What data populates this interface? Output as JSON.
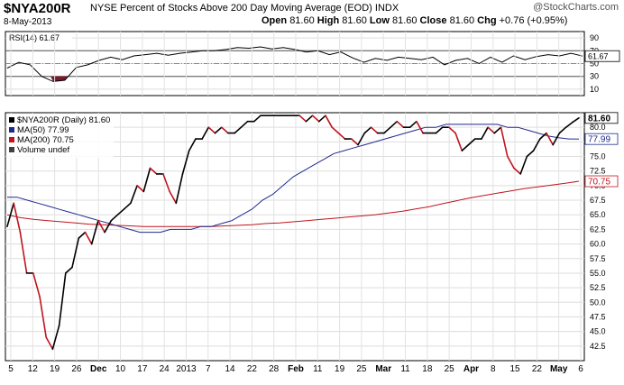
{
  "header": {
    "symbol": "$NYA200R",
    "description": "NYSE Percent of Stocks Above 200 Day Moving Average (EOD)  INDX",
    "date": "8-May-2013",
    "open_label": "Open",
    "open": "81.60",
    "high_label": "High",
    "high": "81.60",
    "low_label": "Low",
    "low": "81.60",
    "close_label": "Close",
    "close": "81.60",
    "chg_label": "Chg",
    "chg": "+0.76 (+0.95%)",
    "watermark": "@StockCharts.com"
  },
  "chart_data": [
    {
      "type": "line",
      "panel": "RSI",
      "title": "RSI(14) 61.67",
      "ylim": [
        0,
        100
      ],
      "yticks": [
        10,
        30,
        50,
        70,
        90
      ],
      "reference_lines": [
        30,
        50,
        70
      ],
      "last_value_label": "61.67",
      "series": [
        {
          "name": "RSI(14)",
          "color": "#000000",
          "values": [
            43,
            52,
            48,
            30,
            22,
            24,
            44,
            48,
            55,
            60,
            56,
            62,
            64,
            66,
            63,
            66,
            68,
            70,
            70,
            72,
            75,
            74,
            76,
            73,
            75,
            72,
            68,
            70,
            64,
            68,
            59,
            52,
            58,
            55,
            60,
            58,
            56,
            60,
            48,
            55,
            58,
            50,
            60,
            52,
            62,
            56,
            61,
            64,
            62,
            66,
            61.67
          ]
        }
      ]
    },
    {
      "type": "line",
      "panel": "price",
      "ylim": [
        40,
        82.5
      ],
      "yticks": [
        42.5,
        45,
        47.5,
        50,
        52.5,
        55,
        57.5,
        60,
        62.5,
        65,
        67.5,
        70,
        72.5,
        75,
        77.5,
        80
      ],
      "x_tick_labels": [
        "5",
        "12",
        "19",
        "26",
        "Dec",
        "10",
        "17",
        "24",
        "2013",
        "7",
        "14",
        "22",
        "28",
        "Feb",
        "11",
        "19",
        "25",
        "Mar",
        "11",
        "18",
        "25",
        "Apr",
        "8",
        "15",
        "22",
        "May",
        "6"
      ],
      "series": [
        {
          "name": "$NYA200R (Daily) 81.60",
          "color": "#000000",
          "values": [
            63,
            67,
            62,
            55,
            55,
            51,
            44,
            42,
            46,
            55,
            56,
            61,
            62,
            60,
            64,
            62,
            64,
            65,
            66,
            67,
            70,
            69,
            73,
            72,
            72,
            69,
            67,
            72,
            76,
            78,
            78,
            80,
            79,
            80,
            79,
            79,
            80,
            81,
            81,
            82,
            82,
            82,
            82,
            82,
            82,
            82,
            81,
            82,
            81,
            82,
            80,
            79,
            78,
            78,
            77,
            79,
            80,
            79,
            79,
            80,
            81,
            80,
            80,
            81,
            79,
            79,
            79,
            80,
            80,
            79,
            76,
            77,
            78,
            78,
            80,
            79,
            80,
            75,
            73,
            72,
            75,
            76,
            78,
            79,
            77,
            79,
            80,
            80.84,
            81.6
          ]
        },
        {
          "name": "MA(50) 77.99",
          "color": "#1f2a8c",
          "values": [
            68,
            68,
            67.5,
            67,
            66.5,
            66,
            65.5,
            65,
            64.5,
            64,
            63.5,
            63,
            62.5,
            62,
            62,
            62,
            62.5,
            62.5,
            62.5,
            63,
            63,
            63.5,
            64,
            65,
            66,
            67.5,
            68.5,
            70,
            71.5,
            72.5,
            73.5,
            74.5,
            75.5,
            76,
            76.5,
            77,
            77.5,
            78,
            78.5,
            79,
            79.5,
            80,
            80,
            80.5,
            80.5,
            80.5,
            80.5,
            80.5,
            80.5,
            80,
            80,
            79.5,
            79,
            78.5,
            78.2,
            78,
            77.99
          ]
        },
        {
          "name": "MA(200) 70.75",
          "color": "#c0141e",
          "values": [
            65,
            64.5,
            64.2,
            64,
            63.8,
            63.6,
            63.4,
            63.3,
            63.2,
            63.1,
            63,
            63,
            63,
            63,
            63,
            63,
            63.1,
            63.2,
            63.3,
            63.5,
            63.6,
            63.8,
            64,
            64.2,
            64.4,
            64.6,
            64.8,
            65,
            65.3,
            65.6,
            66,
            66.4,
            66.9,
            67.4,
            67.9,
            68.3,
            68.7,
            69.1,
            69.5,
            69.8,
            70.1,
            70.4,
            70.75
          ]
        },
        {
          "name": "Volume undef",
          "color": "#808080",
          "values": []
        }
      ],
      "last_value_labels": [
        "81.60",
        "77.99",
        "70.75"
      ]
    }
  ]
}
